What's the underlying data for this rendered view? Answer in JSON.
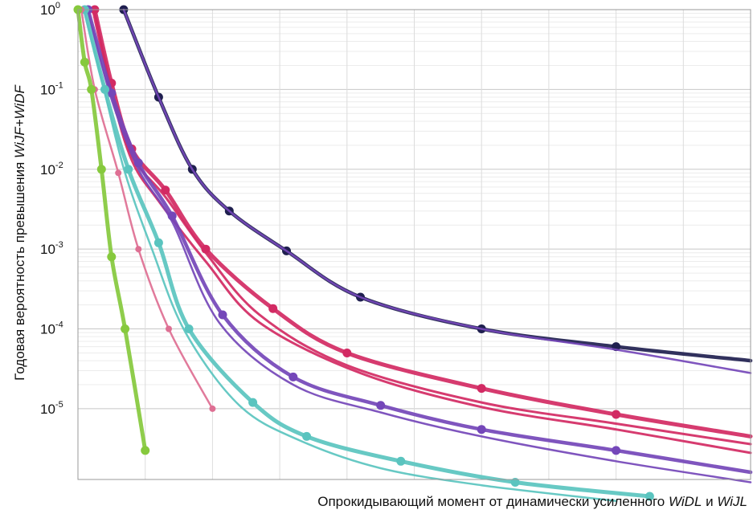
{
  "chart_data": {
    "type": "line",
    "xlabel": {
      "parts": [
        {
          "text": "Опрокидывающий момент от динамически усиленного ",
          "italic": false
        },
        {
          "text": "WiDL",
          "italic": true
        },
        {
          "text": " и ",
          "italic": false
        },
        {
          "text": "WiJL",
          "italic": true
        }
      ]
    },
    "ylabel": {
      "parts": [
        {
          "text": "Годовая вероятность превышения ",
          "italic": false
        },
        {
          "text": "WiJF+WiDF",
          "italic": true
        }
      ]
    },
    "y_scale": "log",
    "ylim": [
      1.3e-06,
      1
    ],
    "xlim": [
      0,
      1
    ],
    "y_ticks": [
      {
        "value": 1,
        "base": "10",
        "exp": "0"
      },
      {
        "value": 0.1,
        "base": "10",
        "exp": "-1"
      },
      {
        "value": 0.01,
        "base": "10",
        "exp": "-2"
      },
      {
        "value": 0.001,
        "base": "10",
        "exp": "-3"
      },
      {
        "value": 0.0001,
        "base": "10",
        "exp": "-4"
      },
      {
        "value": 1e-05,
        "base": "10",
        "exp": "-5"
      }
    ],
    "x_tick_labels": [],
    "grid": true,
    "colors": {
      "navy": "#1f1f4f",
      "crimson": "#d22a63",
      "purple": "#7447b9",
      "teal": "#5ac4bf",
      "green": "#86c93d",
      "pink": "#de6f93"
    },
    "series": [
      {
        "color": "navy",
        "width": 4.5,
        "markers": true,
        "x": [
          0.068,
          0.12,
          0.17,
          0.225,
          0.31,
          0.42,
          0.6,
          0.8,
          1.0
        ],
        "y": [
          1,
          0.08,
          0.01,
          0.003,
          0.00095,
          0.00025,
          0.0001,
          6e-05,
          4e-05
        ]
      },
      {
        "color": "purple",
        "width": 2.5,
        "markers": false,
        "x": [
          0.068,
          0.12,
          0.17,
          0.225,
          0.31,
          0.42,
          0.6,
          0.8,
          1.0
        ],
        "y": [
          1,
          0.08,
          0.01,
          0.003,
          0.00095,
          0.00025,
          0.0001,
          5.5e-05,
          2.8e-05
        ]
      },
      {
        "color": "crimson",
        "width": 5,
        "markers": true,
        "x": [
          0.025,
          0.05,
          0.08,
          0.13,
          0.19,
          0.29,
          0.4,
          0.6,
          0.8,
          1.0
        ],
        "y": [
          1,
          0.12,
          0.018,
          0.0055,
          0.001,
          0.00018,
          5e-05,
          1.8e-05,
          8.5e-06,
          4.5e-06
        ]
      },
      {
        "color": "crimson",
        "width": 3,
        "markers": false,
        "x": [
          0.024,
          0.05,
          0.08,
          0.13,
          0.19,
          0.27,
          0.4,
          0.6,
          0.8,
          1.0
        ],
        "y": [
          1,
          0.1,
          0.015,
          0.0045,
          0.0009,
          0.00015,
          3.5e-05,
          1.2e-05,
          6.5e-06,
          3.6e-06
        ]
      },
      {
        "color": "crimson",
        "width": 3,
        "markers": false,
        "x": [
          0.022,
          0.05,
          0.08,
          0.12,
          0.19,
          0.27,
          0.42,
          0.6,
          0.8,
          1.0
        ],
        "y": [
          1,
          0.09,
          0.013,
          0.004,
          0.0007,
          0.00012,
          2.8e-05,
          1.05e-05,
          5.5e-06,
          2.8e-06
        ]
      },
      {
        "color": "purple",
        "width": 4.5,
        "markers": true,
        "x": [
          0.015,
          0.05,
          0.09,
          0.14,
          0.215,
          0.32,
          0.45,
          0.6,
          0.8,
          1.0
        ],
        "y": [
          1,
          0.09,
          0.012,
          0.0026,
          0.00015,
          2.5e-05,
          1.1e-05,
          5.5e-06,
          3e-06,
          1.6e-06
        ]
      },
      {
        "color": "purple",
        "width": 2.5,
        "markers": false,
        "x": [
          0.014,
          0.05,
          0.09,
          0.14,
          0.21,
          0.32,
          0.45,
          0.6,
          0.8,
          1.0
        ],
        "y": [
          1,
          0.075,
          0.01,
          0.0022,
          0.00012,
          2e-05,
          9e-06,
          4.5e-06,
          2.2e-06,
          1.2e-06
        ]
      },
      {
        "color": "teal",
        "width": 5,
        "markers": true,
        "x": [
          0.01,
          0.04,
          0.075,
          0.12,
          0.165,
          0.26,
          0.34,
          0.48,
          0.65,
          0.85
        ],
        "y": [
          1,
          0.1,
          0.01,
          0.0012,
          0.0001,
          1.2e-05,
          4.5e-06,
          2.2e-06,
          1.2e-06,
          8e-07
        ]
      },
      {
        "color": "teal",
        "width": 2.5,
        "markers": false,
        "x": [
          0.009,
          0.04,
          0.07,
          0.11,
          0.16,
          0.24,
          0.33,
          0.45,
          0.6,
          0.8
        ],
        "y": [
          1,
          0.09,
          0.009,
          0.001,
          9e-05,
          1.1e-05,
          4e-06,
          1.8e-06,
          1.1e-06,
          7e-07
        ]
      },
      {
        "color": "pink",
        "width": 2.5,
        "markers": true,
        "x": [
          0.005,
          0.025,
          0.06,
          0.09,
          0.135,
          0.2
        ],
        "y": [
          1,
          0.1,
          0.009,
          0.001,
          0.0001,
          1e-05
        ]
      },
      {
        "color": "green",
        "width": 5,
        "markers": true,
        "x": [
          0,
          0.01,
          0.02,
          0.035,
          0.05,
          0.07,
          0.1
        ],
        "y": [
          1,
          0.22,
          0.1,
          0.01,
          0.0008,
          0.0001,
          3e-06
        ]
      }
    ]
  }
}
